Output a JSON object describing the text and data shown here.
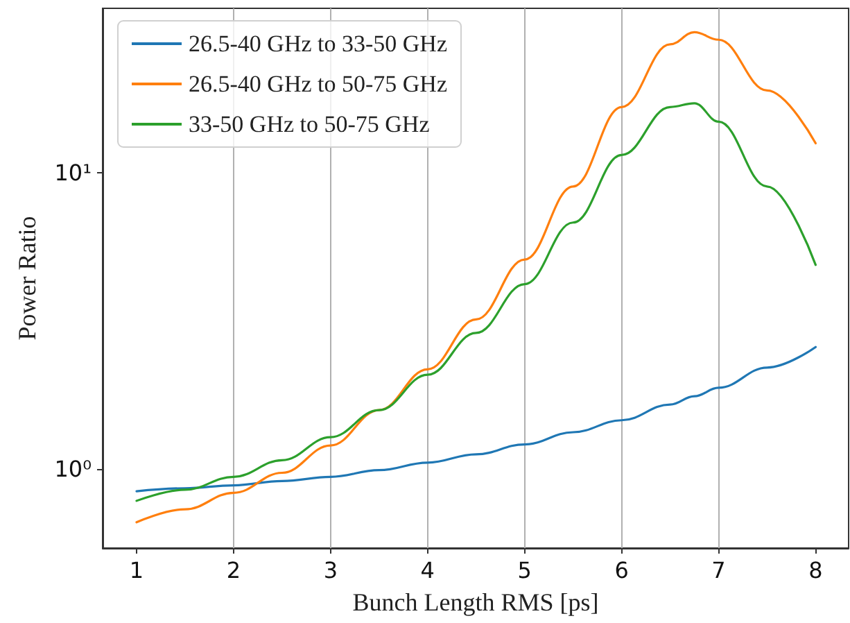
{
  "chart_data": {
    "type": "line",
    "xlabel": "Bunch Length RMS [ps]",
    "ylabel": "Power Ratio",
    "x": [
      1,
      1.5,
      2,
      2.5,
      3,
      3.5,
      4,
      4.5,
      5,
      5.5,
      6,
      6.5,
      6.75,
      7,
      7.5,
      8
    ],
    "series": [
      {
        "name": "26.5-40 GHz to 33-50 GHz",
        "color": "#1f77b4",
        "values": [
          0.84,
          0.86,
          0.88,
          0.91,
          0.94,
          0.99,
          1.05,
          1.12,
          1.21,
          1.33,
          1.46,
          1.65,
          1.76,
          1.88,
          2.2,
          2.58
        ]
      },
      {
        "name": "26.5-40 GHz to 50-75 GHz",
        "color": "#ff7f0e",
        "values": [
          0.66,
          0.73,
          0.83,
          0.97,
          1.2,
          1.58,
          2.17,
          3.2,
          5.1,
          9.0,
          16.7,
          27.2,
          29.9,
          28.2,
          19.0,
          12.6
        ]
      },
      {
        "name": "33-50 GHz to 50-75 GHz",
        "color": "#2ca02c",
        "values": [
          0.78,
          0.85,
          0.94,
          1.07,
          1.28,
          1.58,
          2.08,
          2.88,
          4.21,
          6.8,
          11.5,
          16.7,
          17.2,
          14.9,
          9.0,
          4.89
        ]
      }
    ],
    "xlim": [
      0.65,
      8.34
    ],
    "xticks": [
      1,
      2,
      3,
      4,
      5,
      6,
      7,
      8
    ],
    "ylim": [
      0.54,
      36
    ],
    "yticks": [
      {
        "value": 1,
        "label": "10⁰"
      },
      {
        "value": 10,
        "label": "10¹"
      }
    ],
    "log": "y",
    "grid": true,
    "legend": "top left",
    "marker": "none",
    "line_style": "solid"
  }
}
